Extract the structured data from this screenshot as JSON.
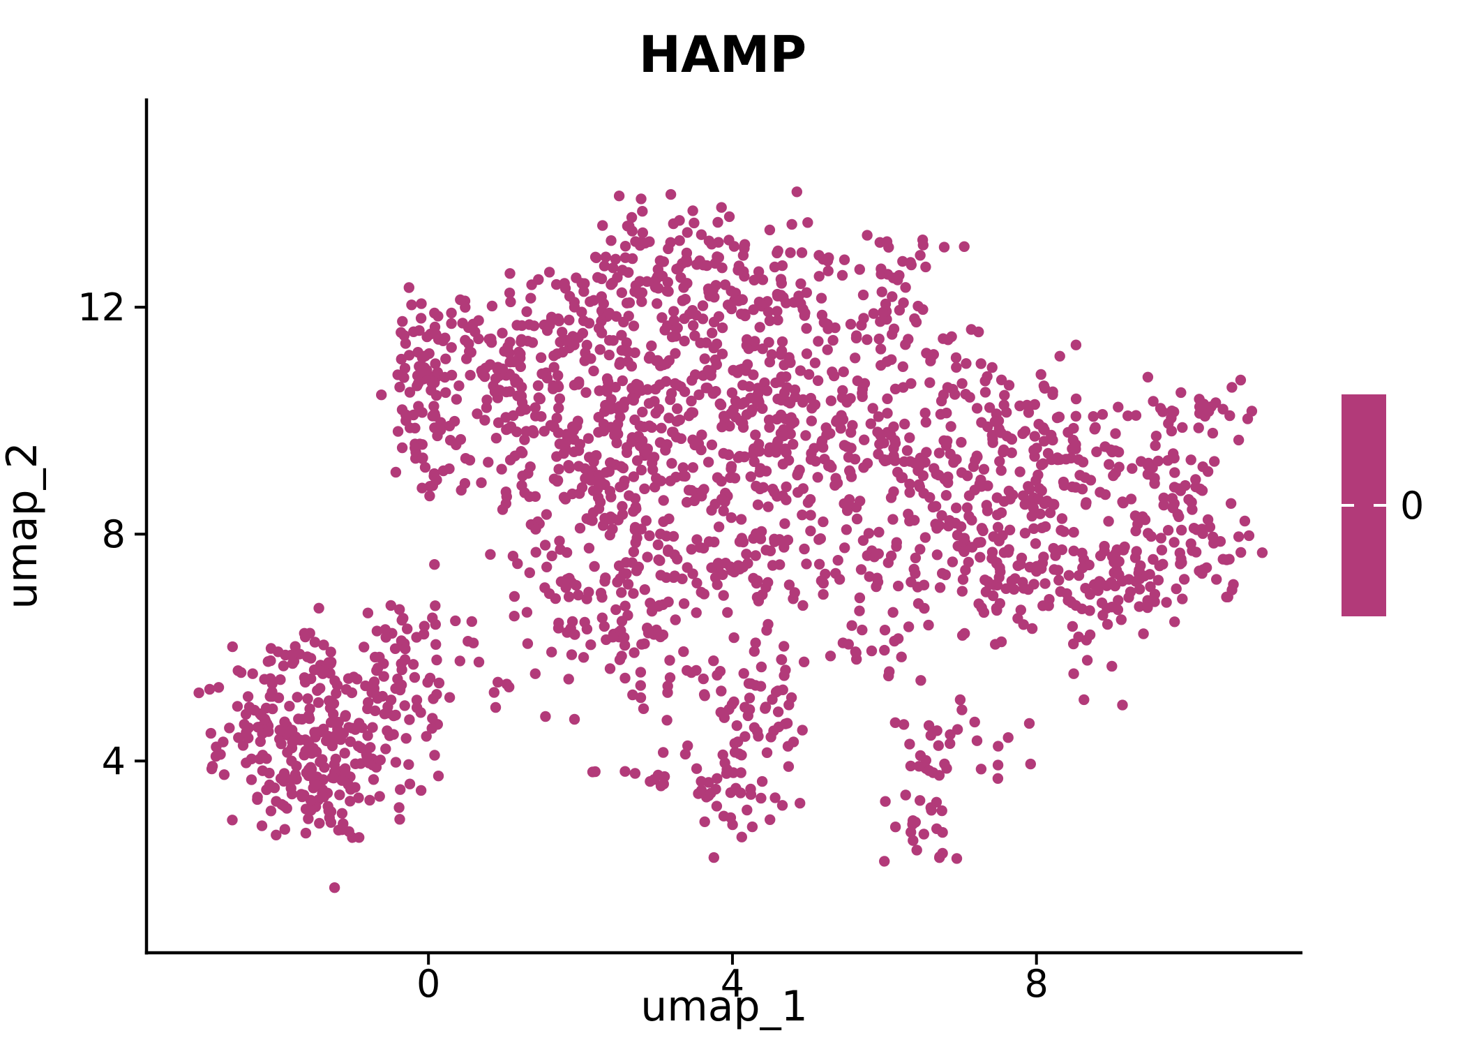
{
  "title": "HAMP",
  "axes": {
    "x_label": "umap_1",
    "y_label": "umap_2",
    "x_tick_labels": [
      "0",
      "4",
      "8"
    ],
    "y_tick_labels": [
      "12",
      "8",
      "4"
    ]
  },
  "legend": {
    "label": "0",
    "type": "colorbar"
  },
  "colors": {
    "point": "#B23A79",
    "axis": "#000000",
    "background": "#FFFFFF",
    "legend_tick": "#FFFFFF"
  },
  "chart_data": {
    "type": "scatter",
    "title": "HAMP",
    "xlabel": "umap_1",
    "ylabel": "umap_2",
    "x_ticks": [
      0,
      4,
      8
    ],
    "y_ticks": [
      12,
      8,
      4
    ],
    "xlim": [
      -3.71,
      11.5
    ],
    "ylim": [
      0.62,
      15.68
    ],
    "grid": false,
    "legend_position": "right",
    "legend_colorbar_label": "0",
    "point_color": "#B23A79",
    "point_radius_px": 7.7,
    "n_points_approx": 2340,
    "seed": 42,
    "clusters": [
      {
        "x": 2.94,
        "y": 12.98,
        "sx": 0.5,
        "sy": 0.49,
        "n": 65
      },
      {
        "x": 3.54,
        "y": 12.12,
        "sx": 0.55,
        "sy": 0.55,
        "n": 50
      },
      {
        "x": 2.26,
        "y": 12.0,
        "sx": 0.46,
        "sy": 0.55,
        "n": 45
      },
      {
        "x": 4.28,
        "y": 12.62,
        "sx": 0.5,
        "sy": 0.49,
        "n": 40
      },
      {
        "x": 5.01,
        "y": 11.88,
        "sx": 0.55,
        "sy": 0.62,
        "n": 45
      },
      {
        "x": 6.02,
        "y": 11.51,
        "sx": 0.55,
        "sy": 0.68,
        "n": 40
      },
      {
        "x": 1.43,
        "y": 11.51,
        "sx": 0.41,
        "sy": 0.49,
        "n": 40
      },
      {
        "x": 0.79,
        "y": 10.77,
        "sx": 0.41,
        "sy": 0.55,
        "n": 40
      },
      {
        "x": -0.13,
        "y": 11.02,
        "sx": 0.23,
        "sy": 0.49,
        "n": 40
      },
      {
        "x": -0.08,
        "y": 9.91,
        "sx": 0.26,
        "sy": 0.49,
        "n": 35
      },
      {
        "x": 7.03,
        "y": 10.52,
        "sx": 0.55,
        "sy": 0.49,
        "n": 40
      },
      {
        "x": 6.29,
        "y": 12.74,
        "sx": 0.37,
        "sy": 0.37,
        "n": 15
      },
      {
        "x": 7.76,
        "y": 10.03,
        "sx": 0.46,
        "sy": 0.55,
        "n": 40
      },
      {
        "x": 8.68,
        "y": 9.54,
        "sx": 0.5,
        "sy": 0.55,
        "n": 45
      },
      {
        "x": 9.6,
        "y": 8.8,
        "sx": 0.41,
        "sy": 0.49,
        "n": 35
      },
      {
        "x": 10.13,
        "y": 10.03,
        "sx": 0.37,
        "sy": 0.34,
        "n": 30
      },
      {
        "x": 10.24,
        "y": 7.69,
        "sx": 0.41,
        "sy": 0.55,
        "n": 40
      },
      {
        "x": 9.41,
        "y": 7.32,
        "sx": 0.46,
        "sy": 0.55,
        "n": 45
      },
      {
        "x": 1.89,
        "y": 10.52,
        "sx": 0.5,
        "sy": 0.62,
        "n": 45
      },
      {
        "x": 2.9,
        "y": 10.77,
        "sx": 0.5,
        "sy": 0.62,
        "n": 50
      },
      {
        "x": 4.0,
        "y": 10.65,
        "sx": 0.5,
        "sy": 0.55,
        "n": 60
      },
      {
        "x": 4.64,
        "y": 10.03,
        "sx": 0.46,
        "sy": 0.49,
        "n": 45
      },
      {
        "x": 5.65,
        "y": 10.03,
        "sx": 0.5,
        "sy": 0.62,
        "n": 40
      },
      {
        "x": 3.17,
        "y": 9.54,
        "sx": 0.5,
        "sy": 0.62,
        "n": 45
      },
      {
        "x": 2.26,
        "y": 9.29,
        "sx": 0.46,
        "sy": 0.62,
        "n": 40
      },
      {
        "x": 1.34,
        "y": 9.54,
        "sx": 0.41,
        "sy": 0.55,
        "n": 35
      },
      {
        "x": 4.09,
        "y": 8.92,
        "sx": 0.5,
        "sy": 0.62,
        "n": 45
      },
      {
        "x": 5.19,
        "y": 8.92,
        "sx": 0.5,
        "sy": 0.62,
        "n": 40
      },
      {
        "x": 6.29,
        "y": 9.29,
        "sx": 0.5,
        "sy": 0.68,
        "n": 40
      },
      {
        "x": 7.21,
        "y": 8.8,
        "sx": 0.5,
        "sy": 0.62,
        "n": 45
      },
      {
        "x": 8.13,
        "y": 8.43,
        "sx": 0.5,
        "sy": 0.55,
        "n": 45
      },
      {
        "x": 2.99,
        "y": 7.82,
        "sx": 0.46,
        "sy": 0.68,
        "n": 45
      },
      {
        "x": 3.91,
        "y": 7.57,
        "sx": 0.46,
        "sy": 0.55,
        "n": 40
      },
      {
        "x": 4.92,
        "y": 7.57,
        "sx": 0.5,
        "sy": 0.55,
        "n": 40
      },
      {
        "x": 6.57,
        "y": 7.69,
        "sx": 0.5,
        "sy": 0.62,
        "n": 50
      },
      {
        "x": 7.49,
        "y": 7.32,
        "sx": 0.55,
        "sy": 0.55,
        "n": 55
      },
      {
        "x": 8.59,
        "y": 7.08,
        "sx": 0.55,
        "sy": 0.49,
        "n": 50
      },
      {
        "x": 2.44,
        "y": 8.92,
        "sx": 0.41,
        "sy": 0.62,
        "n": 40
      },
      {
        "x": 2.62,
        "y": 6.71,
        "sx": 0.37,
        "sy": 0.62,
        "n": 30
      },
      {
        "x": 3.17,
        "y": 5.6,
        "sx": 0.32,
        "sy": 0.55,
        "n": 25
      },
      {
        "x": 4.28,
        "y": 5.6,
        "sx": 0.37,
        "sy": 0.55,
        "n": 30
      },
      {
        "x": 5.74,
        "y": 5.97,
        "sx": 0.64,
        "sy": 0.25,
        "n": 18
      },
      {
        "x": 0.38,
        "y": 11.51,
        "sx": 0.32,
        "sy": 0.43,
        "n": 30
      },
      {
        "x": 0.33,
        "y": 9.17,
        "sx": 0.32,
        "sy": 0.31,
        "n": 15
      },
      {
        "x": 1.71,
        "y": 7.82,
        "sx": 0.41,
        "sy": 0.74,
        "n": 40
      },
      {
        "x": 2.07,
        "y": 6.34,
        "sx": 0.37,
        "sy": 0.49,
        "n": 25
      },
      {
        "x": 2.99,
        "y": 3.75,
        "sx": 0.55,
        "sy": 0.18,
        "n": 18
      },
      {
        "x": 4.09,
        "y": 3.51,
        "sx": 0.32,
        "sy": 0.55,
        "n": 40
      },
      {
        "x": 4.5,
        "y": 4.86,
        "sx": 0.28,
        "sy": 0.43,
        "n": 20
      },
      {
        "x": 6.87,
        "y": 4.31,
        "sx": 0.37,
        "sy": 0.27,
        "n": 28
      },
      {
        "x": 6.46,
        "y": 2.89,
        "sx": 0.2,
        "sy": 0.47,
        "n": 24
      },
      {
        "x": -1.5,
        "y": 4.86,
        "sx": 0.5,
        "sy": 0.68,
        "n": 80
      },
      {
        "x": -0.86,
        "y": 4.12,
        "sx": 0.5,
        "sy": 0.68,
        "n": 75
      },
      {
        "x": -1.96,
        "y": 3.88,
        "sx": 0.41,
        "sy": 0.62,
        "n": 55
      },
      {
        "x": -2.42,
        "y": 4.62,
        "sx": 0.28,
        "sy": 0.49,
        "n": 30
      },
      {
        "x": -0.5,
        "y": 5.48,
        "sx": 0.41,
        "sy": 0.49,
        "n": 40
      },
      {
        "x": -0.13,
        "y": 6.34,
        "sx": 0.37,
        "sy": 0.37,
        "n": 25
      },
      {
        "x": -1.32,
        "y": 3.14,
        "sx": 0.46,
        "sy": 0.43,
        "n": 30
      },
      {
        "x": -1.69,
        "y": 5.85,
        "sx": 0.32,
        "sy": 0.31,
        "n": 20
      },
      {
        "x": 1.06,
        "y": 4.98,
        "sx": 0.55,
        "sy": 0.62,
        "n": 10
      },
      {
        "x": 8.86,
        "y": 5.72,
        "sx": 0.64,
        "sy": 0.62,
        "n": 8
      }
    ]
  }
}
